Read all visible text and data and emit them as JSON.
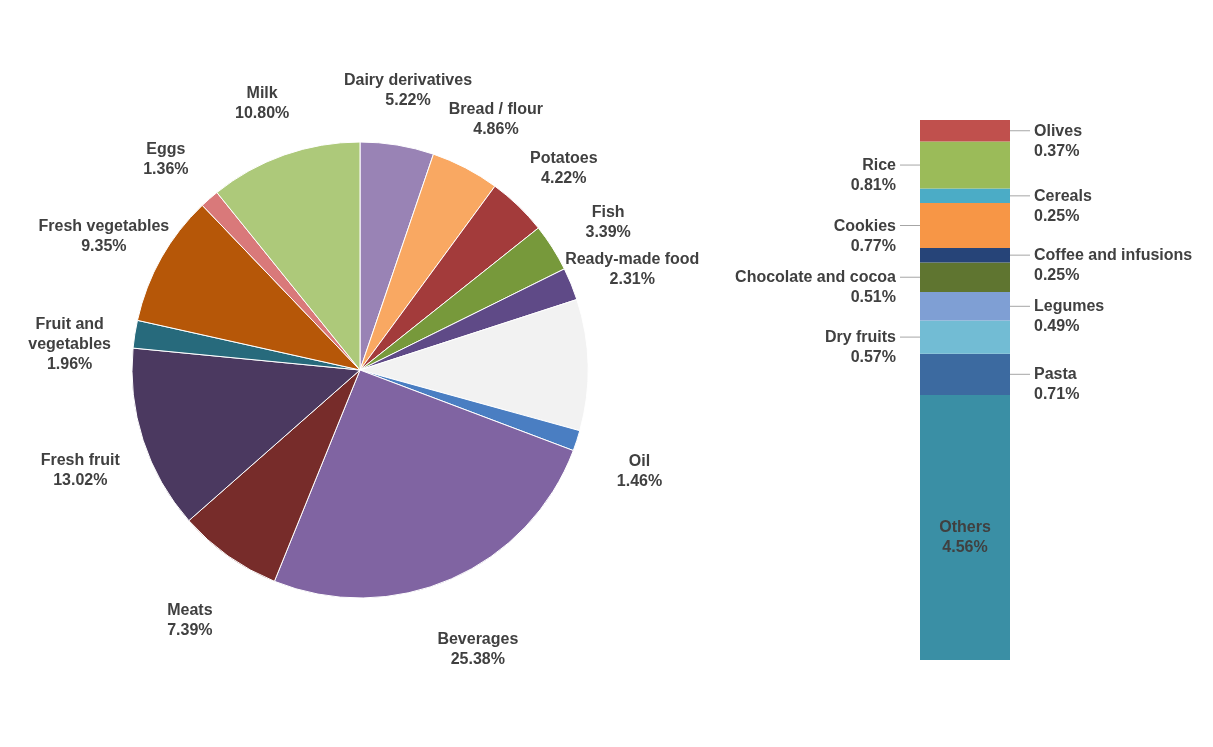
{
  "chart_data": [
    {
      "type": "pie",
      "categories": [
        "Dairy derivatives",
        "Bread / flour",
        "Potatoes",
        "Fish",
        "Ready-made food",
        null,
        "Oil",
        "Beverages",
        "Meats",
        "Fresh fruit",
        "Fruit and vegetables",
        "Fresh vegetables",
        "Eggs",
        "Milk"
      ],
      "values": [
        5.22,
        4.86,
        4.22,
        3.39,
        2.31,
        9.29,
        1.46,
        25.38,
        7.39,
        13.02,
        1.96,
        9.35,
        1.36,
        10.8
      ],
      "colors": [
        "#9983b5",
        "#f9a862",
        "#a33b3b",
        "#77993b",
        "#5f4a87",
        "#f2f2f2",
        "#4a7ec2",
        "#8064a2",
        "#772c2a",
        "#4b3960",
        "#276a7c",
        "#b65708",
        "#d9797a",
        "#adc97a"
      ],
      "value_labels": [
        "5.22%",
        "4.86%",
        "4.22%",
        "3.39%",
        "2.31%",
        null,
        "1.46%",
        "25.38%",
        "7.39%",
        "13.02%",
        "1.96%",
        "9.35%",
        "1.36%",
        "10.80%"
      ],
      "legend": false
    },
    {
      "type": "bar",
      "stacked": true,
      "categories": [
        null
      ],
      "legend": false,
      "tick_labels": false,
      "series": [
        {
          "name": "Others",
          "color": "#3a8fa5",
          "values": [
            4.56
          ],
          "value_labels": [
            "4.56%"
          ]
        },
        {
          "name": "Pasta",
          "color": "#3c6aa0",
          "values": [
            0.71
          ],
          "value_labels": [
            "0.71%"
          ]
        },
        {
          "name": "Dry fruits",
          "color": "#72bcd4",
          "values": [
            0.57
          ],
          "value_labels": [
            "0.57%"
          ]
        },
        {
          "name": "Legumes",
          "color": "#7f9fd4",
          "values": [
            0.49
          ],
          "value_labels": [
            "0.49%"
          ]
        },
        {
          "name": "Chocolate and cocoa",
          "color": "#5f7530",
          "values": [
            0.51
          ],
          "value_labels": [
            "0.51%"
          ]
        },
        {
          "name": "Coffee and infusions",
          "color": "#264478",
          "values": [
            0.25
          ],
          "value_labels": [
            "0.25%"
          ]
        },
        {
          "name": "Cookies",
          "color": "#f79646",
          "values": [
            0.77
          ],
          "value_labels": [
            "0.77%"
          ]
        },
        {
          "name": "Cereals",
          "color": "#4bacc6",
          "values": [
            0.25
          ],
          "value_labels": [
            "0.25%"
          ]
        },
        {
          "name": "Rice",
          "color": "#9bbb59",
          "values": [
            0.81
          ],
          "value_labels": [
            "0.81%"
          ]
        },
        {
          "name": "Olives",
          "color": "#c0504d",
          "values": [
            0.37
          ],
          "value_labels": [
            "0.37%"
          ]
        }
      ]
    }
  ]
}
